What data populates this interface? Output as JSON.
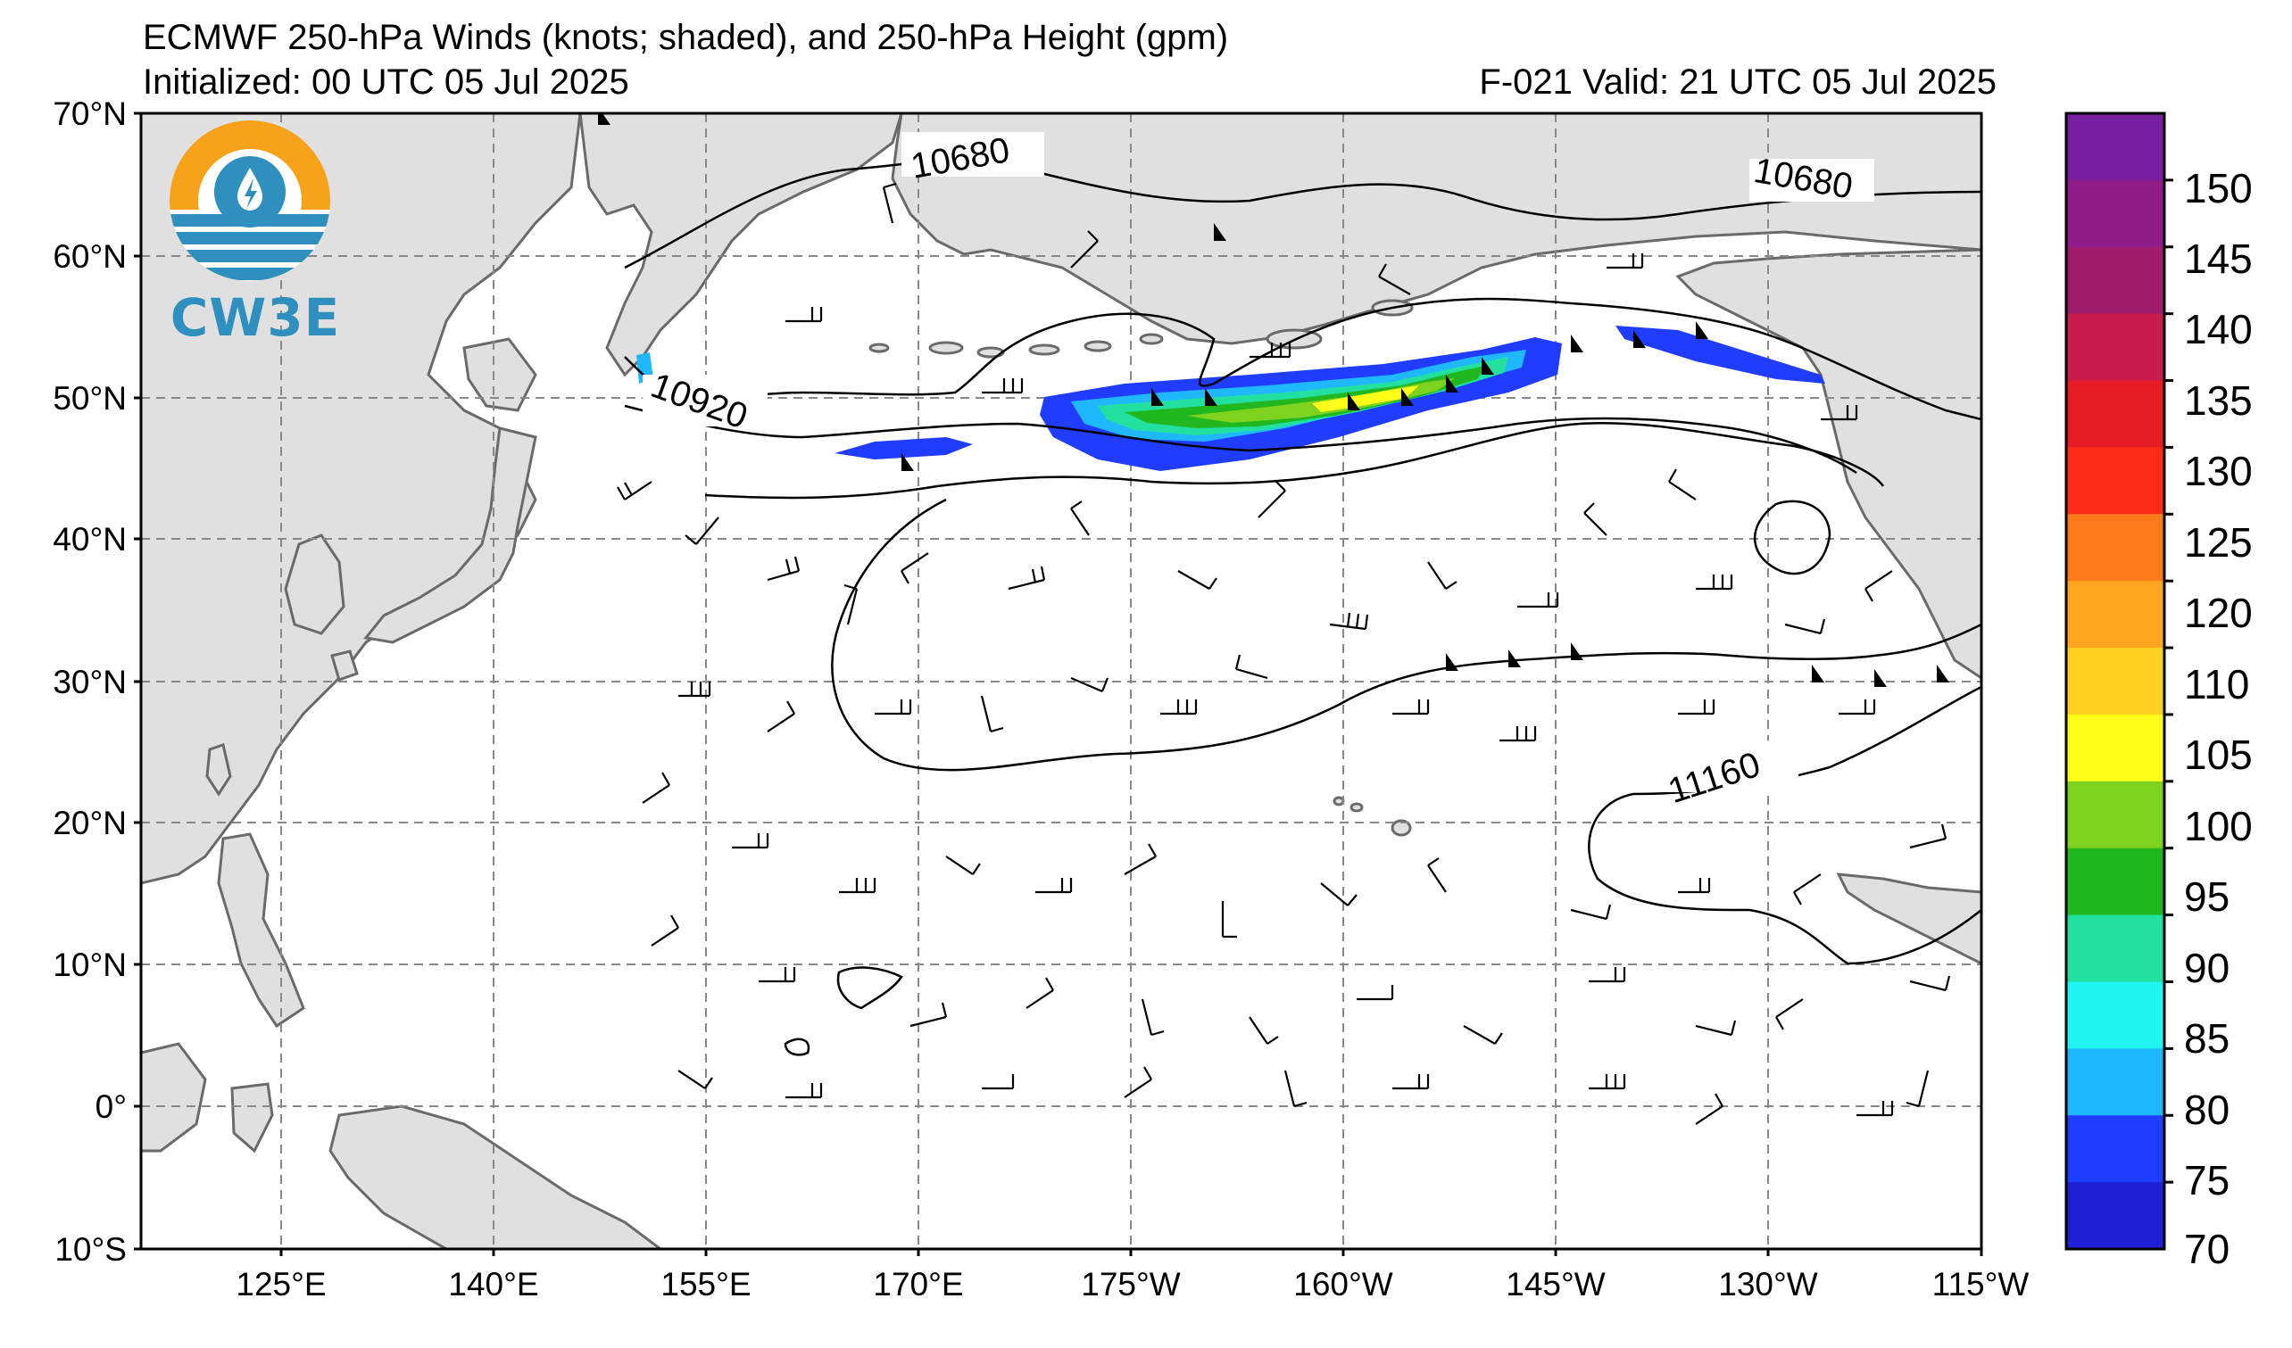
{
  "header": {
    "title": "ECMWF 250-hPa Winds (knots; shaded), and 250-hPa Height (gpm)",
    "initialized": "Initialized: 00 UTC 05 Jul 2025",
    "valid": "F-021  Valid: 21 UTC 05 Jul 2025"
  },
  "logo": {
    "text": "CW3E"
  },
  "axes": {
    "lat_labels": [
      "70°N",
      "60°N",
      "50°N",
      "40°N",
      "30°N",
      "20°N",
      "10°N",
      "0°",
      "10°S"
    ],
    "lon_labels": [
      "125°E",
      "140°E",
      "155°E",
      "170°E",
      "175°W",
      "160°W",
      "145°W",
      "130°W",
      "115°W"
    ]
  },
  "contour_labels": [
    {
      "text": "10680"
    },
    {
      "text": "10680"
    },
    {
      "text": "10920"
    },
    {
      "text": "11160"
    }
  ],
  "colorbar": {
    "labels": [
      "150",
      "145",
      "140",
      "135",
      "130",
      "125",
      "120",
      "110",
      "105",
      "100",
      "95",
      "90",
      "85",
      "80",
      "75",
      "70"
    ],
    "colors": [
      "#7b1fa2",
      "#8e1d8a",
      "#a01c6c",
      "#c81d4a",
      "#e51c24",
      "#ff2a1a",
      "#ff7a1a",
      "#ffa51f",
      "#ffd01f",
      "#ffff1a",
      "#7dd31f",
      "#21b81f",
      "#21e0a0",
      "#1ff5f0",
      "#1fb8ff",
      "#1f3cff",
      "#1f1fd6"
    ]
  },
  "map": {
    "land_color": "#e0e0e0",
    "jet_colors": [
      "#1f3cff",
      "#1fb8ff",
      "#21e0a0",
      "#21b81f",
      "#7dd31f",
      "#ffff1a"
    ]
  }
}
